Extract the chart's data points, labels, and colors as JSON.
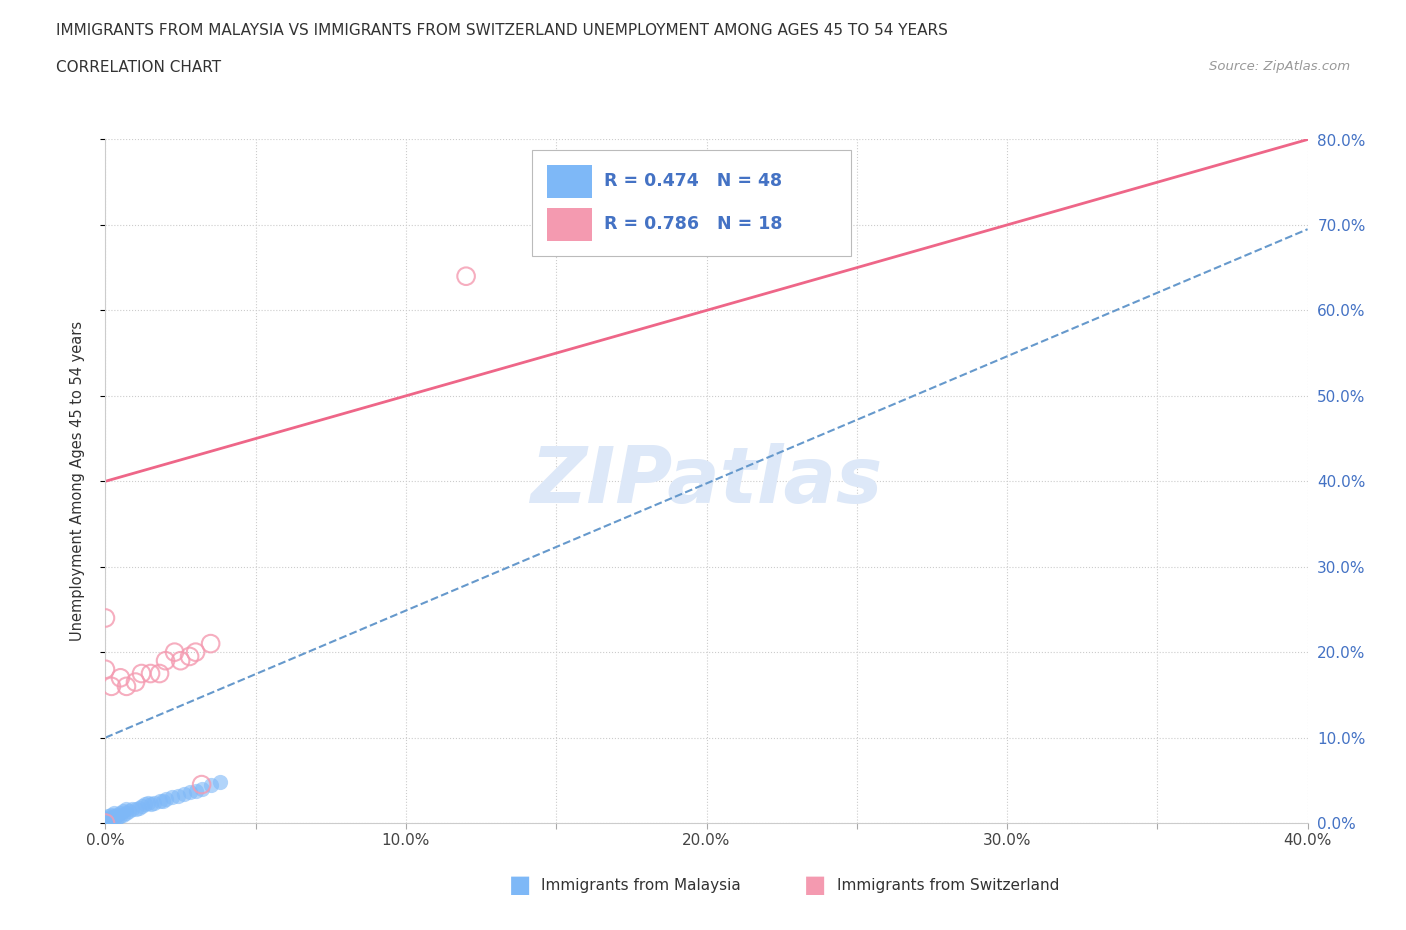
{
  "title_line1": "IMMIGRANTS FROM MALAYSIA VS IMMIGRANTS FROM SWITZERLAND UNEMPLOYMENT AMONG AGES 45 TO 54 YEARS",
  "title_line2": "CORRELATION CHART",
  "source_text": "Source: ZipAtlas.com",
  "ylabel": "Unemployment Among Ages 45 to 54 years",
  "xlim": [
    0.0,
    0.4
  ],
  "ylim": [
    0.0,
    0.8
  ],
  "malaysia_R": 0.474,
  "malaysia_N": 48,
  "switzerland_R": 0.786,
  "switzerland_N": 18,
  "malaysia_color": "#7eb8f7",
  "switzerland_color": "#f49ab0",
  "malaysia_line_color": "#6699cc",
  "switzerland_line_color": "#ee6688",
  "watermark_color": "#dde8f8",
  "background_color": "#ffffff",
  "malaysia_x": [
    0.0,
    0.0,
    0.0,
    0.0,
    0.0,
    0.0,
    0.0,
    0.0,
    0.0,
    0.0,
    0.001,
    0.001,
    0.001,
    0.001,
    0.002,
    0.002,
    0.002,
    0.003,
    0.003,
    0.003,
    0.004,
    0.004,
    0.005,
    0.005,
    0.006,
    0.006,
    0.007,
    0.007,
    0.008,
    0.009,
    0.01,
    0.011,
    0.012,
    0.013,
    0.014,
    0.015,
    0.016,
    0.018,
    0.019,
    0.02,
    0.022,
    0.024,
    0.026,
    0.028,
    0.03,
    0.032,
    0.035,
    0.038
  ],
  "malaysia_y": [
    0.0,
    0.0,
    0.0,
    0.0,
    0.0,
    0.002,
    0.003,
    0.004,
    0.005,
    0.006,
    0.0,
    0.002,
    0.004,
    0.008,
    0.003,
    0.006,
    0.01,
    0.005,
    0.008,
    0.012,
    0.006,
    0.01,
    0.008,
    0.012,
    0.01,
    0.014,
    0.012,
    0.016,
    0.014,
    0.016,
    0.016,
    0.018,
    0.02,
    0.022,
    0.024,
    0.022,
    0.024,
    0.026,
    0.026,
    0.028,
    0.03,
    0.032,
    0.034,
    0.036,
    0.038,
    0.04,
    0.044,
    0.048
  ],
  "switzerland_x": [
    0.0,
    0.0,
    0.0,
    0.002,
    0.005,
    0.007,
    0.01,
    0.012,
    0.015,
    0.018,
    0.02,
    0.023,
    0.025,
    0.028,
    0.03,
    0.035,
    0.12,
    0.032
  ],
  "switzerland_y": [
    0.0,
    0.18,
    0.24,
    0.16,
    0.17,
    0.16,
    0.165,
    0.175,
    0.175,
    0.175,
    0.19,
    0.2,
    0.19,
    0.195,
    0.2,
    0.21,
    0.64,
    0.045
  ],
  "swi_line_x0": 0.0,
  "swi_line_y0": 0.4,
  "swi_line_x1": 0.4,
  "swi_line_y1": 0.8,
  "mal_line_x0": 0.0,
  "mal_line_y0": 0.1,
  "mal_line_x1": 0.4,
  "mal_line_y1": 0.695
}
